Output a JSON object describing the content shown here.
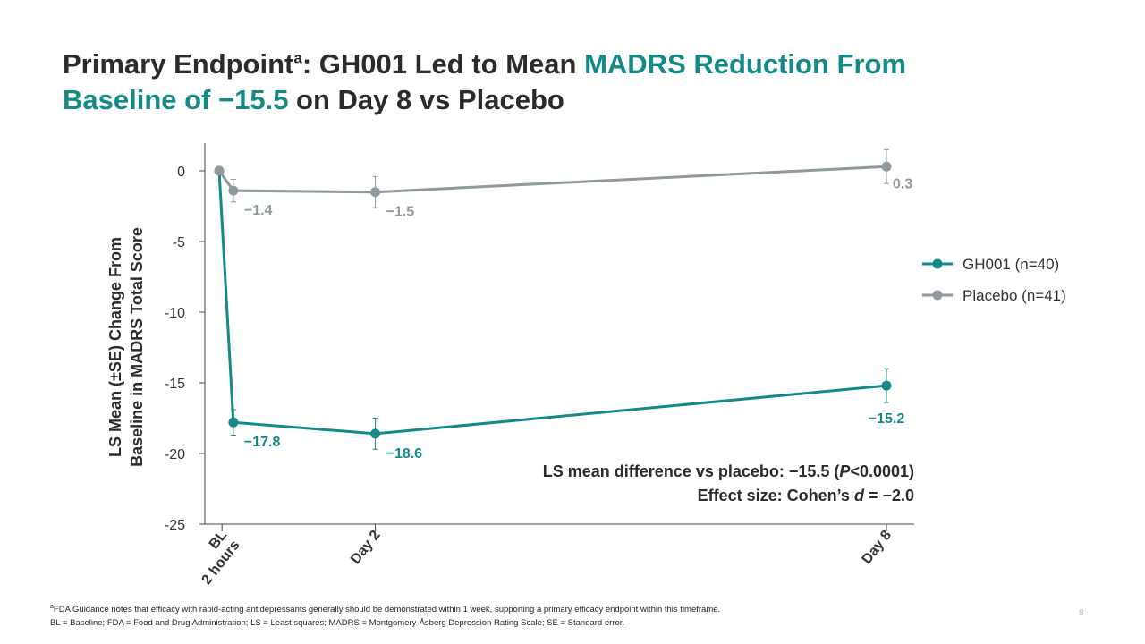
{
  "title": {
    "part1": "Primary Endpoint",
    "sup": "a",
    "part2": ": GH001 Led to Mean ",
    "accent1": "MADRS Reduction From",
    "accent2": "Baseline of −15.5",
    "part3": " on Day 8 vs Placebo"
  },
  "chart_data": {
    "type": "line",
    "ylabel_line1": "LS Mean (±SE) Change From",
    "ylabel_line2": "Baseline in MADRS Total Score",
    "ylim": [
      -25,
      2
    ],
    "yticks": [
      0,
      -5,
      -10,
      -15,
      -20,
      -25
    ],
    "ytick_labels": [
      "0",
      "-5",
      "-10",
      "-15",
      "-20",
      "-25"
    ],
    "x_positions": [
      0,
      1,
      11,
      47
    ],
    "x_ticks": [
      {
        "x": 0.2,
        "lines": [
          "BL",
          "2 hours"
        ]
      },
      {
        "x": 11,
        "lines": [
          "Day 2"
        ]
      },
      {
        "x": 47,
        "lines": [
          "Day 8"
        ]
      }
    ],
    "series": [
      {
        "name": "GH001 (n=40)",
        "color": "#138a86",
        "values": [
          0,
          -17.8,
          -18.6,
          -15.2
        ],
        "se": [
          0,
          0.9,
          1.1,
          1.2
        ],
        "labels": [
          null,
          "−17.8",
          "−18.6",
          "−15.2"
        ],
        "label_side": [
          null,
          "below-right",
          "below-right",
          "below"
        ]
      },
      {
        "name": "Placebo (n=41)",
        "color": "#8f9a9e",
        "values": [
          0,
          -1.4,
          -1.5,
          0.3
        ],
        "se": [
          0,
          0.8,
          1.1,
          1.2
        ],
        "labels": [
          null,
          "−1.4",
          "−1.5",
          "0.3"
        ],
        "label_side": [
          null,
          "below-right",
          "below-right",
          "below-right"
        ]
      }
    ],
    "annotation_line1_pre": "LS mean difference vs placebo: −15.5 (",
    "annotation_line1_italic": "P",
    "annotation_line1_post": "<0.0001)",
    "annotation_line2_pre": "Effect size: Cohen’s ",
    "annotation_line2_italic": "d",
    "annotation_line2_post": " = −2.0",
    "legend_position": "right"
  },
  "footnotes": {
    "line1_sup": "a",
    "line1": "FDA Guidance notes that efficacy with rapid-acting antidepressants generally should be demonstrated within 1 week, supporting a primary efficacy endpoint within this timeframe.",
    "line2": "BL = Baseline; FDA = Food and Drug Administration; LS = Least squares; MADRS = Montgomery-Åsberg Depression Rating Scale; SE = Standard error."
  },
  "page_number": "8"
}
